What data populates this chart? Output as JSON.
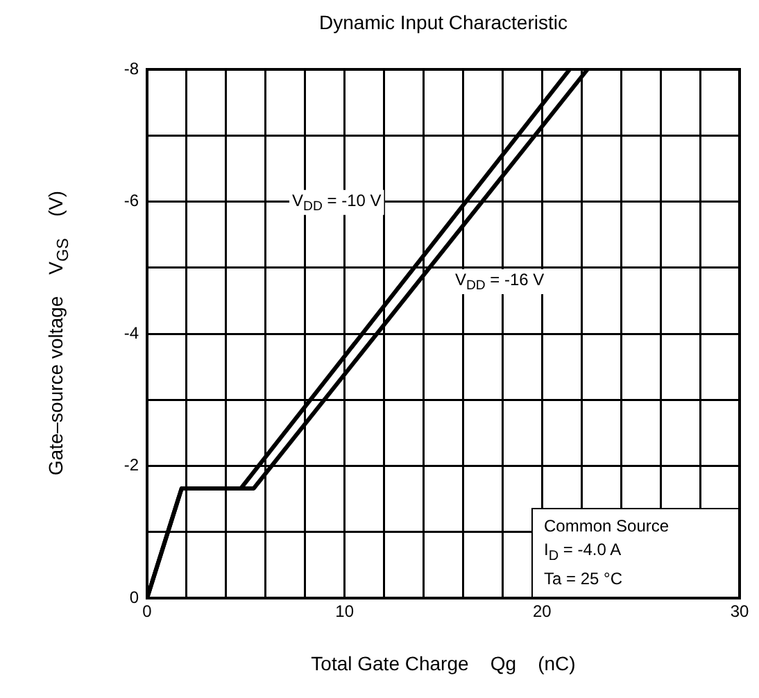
{
  "chart_data": {
    "type": "line",
    "title": "Dynamic Input Characteristic",
    "xlabel": "Total Gate Charge    Qg    (nC)",
    "ylabel": "Gate–source voltage    V$_{GS}$    (V)",
    "xlim": [
      0,
      30
    ],
    "xticks": [
      0,
      {
        "value": 2,
        "label": null
      },
      {
        "value": 4,
        "label": null
      },
      {
        "value": 6,
        "label": null
      },
      {
        "value": 8,
        "label": null
      },
      10,
      {
        "value": 12,
        "label": null
      },
      {
        "value": 14,
        "label": null
      },
      {
        "value": 16,
        "label": null
      },
      {
        "value": 18,
        "label": null
      },
      20,
      {
        "value": 22,
        "label": null
      },
      {
        "value": 24,
        "label": null
      },
      {
        "value": 26,
        "label": null
      },
      {
        "value": 28,
        "label": null
      },
      30
    ],
    "ylim": [
      0,
      -8
    ],
    "yticks": [
      0,
      {
        "value": -1,
        "label": null
      },
      -2,
      {
        "value": -3,
        "label": null
      },
      -4,
      {
        "value": -5,
        "label": null
      },
      -6,
      {
        "value": -7,
        "label": null
      },
      -8
    ],
    "grid": true,
    "legend": false,
    "marker": "none",
    "line_style": "solid",
    "series": [
      {
        "color": "#000000",
        "x": [
          0,
          1.75,
          4.75,
          21.4
        ],
        "values": [
          0,
          -1.66,
          -1.66,
          -8
        ]
      },
      {
        "color": "#000000",
        "x": [
          0,
          1.75,
          5.4,
          22.3
        ],
        "values": [
          0,
          -1.66,
          -1.66,
          -8
        ]
      }
    ],
    "annotations": [
      "V$_{DD}$ = -10 V",
      "V$_{DD}$ = -16 V",
      "Common Source",
      "I$_{D}$ = -4.0 A",
      "Ta = 25 °C"
    ]
  }
}
